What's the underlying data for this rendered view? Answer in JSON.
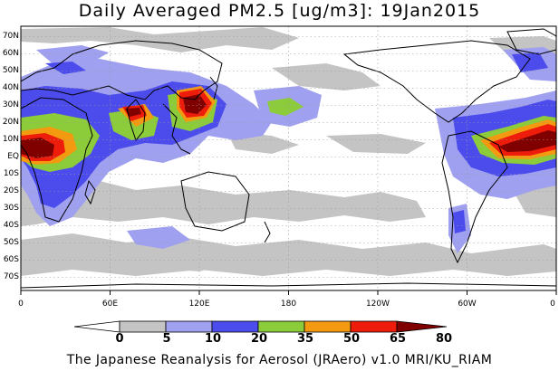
{
  "title": "Daily Averaged PM2.5 [ug/m3]: 19Jan2015",
  "credit": "The Japanese Reanalysis for Aerosol (JRAero) v1.0 MRI/KU_RIAM",
  "lat_labels": [
    "70N",
    "60N",
    "50N",
    "40N",
    "30N",
    "20N",
    "10N",
    "EQ",
    "10S",
    "20S",
    "30S",
    "40S",
    "50S",
    "60S",
    "70S"
  ],
  "lon_labels": [
    "0",
    "60E",
    "120E",
    "180",
    "120W",
    "60W",
    "0"
  ],
  "colorbar": {
    "levels": [
      "0",
      "5",
      "10",
      "20",
      "35",
      "50",
      "65",
      "80"
    ],
    "colors": [
      "#ffffff",
      "#c4c4c4",
      "#a0a0f0",
      "#4c4ced",
      "#8ccc3a",
      "#f39a10",
      "#ee1c0a",
      "#800000"
    ]
  }
}
